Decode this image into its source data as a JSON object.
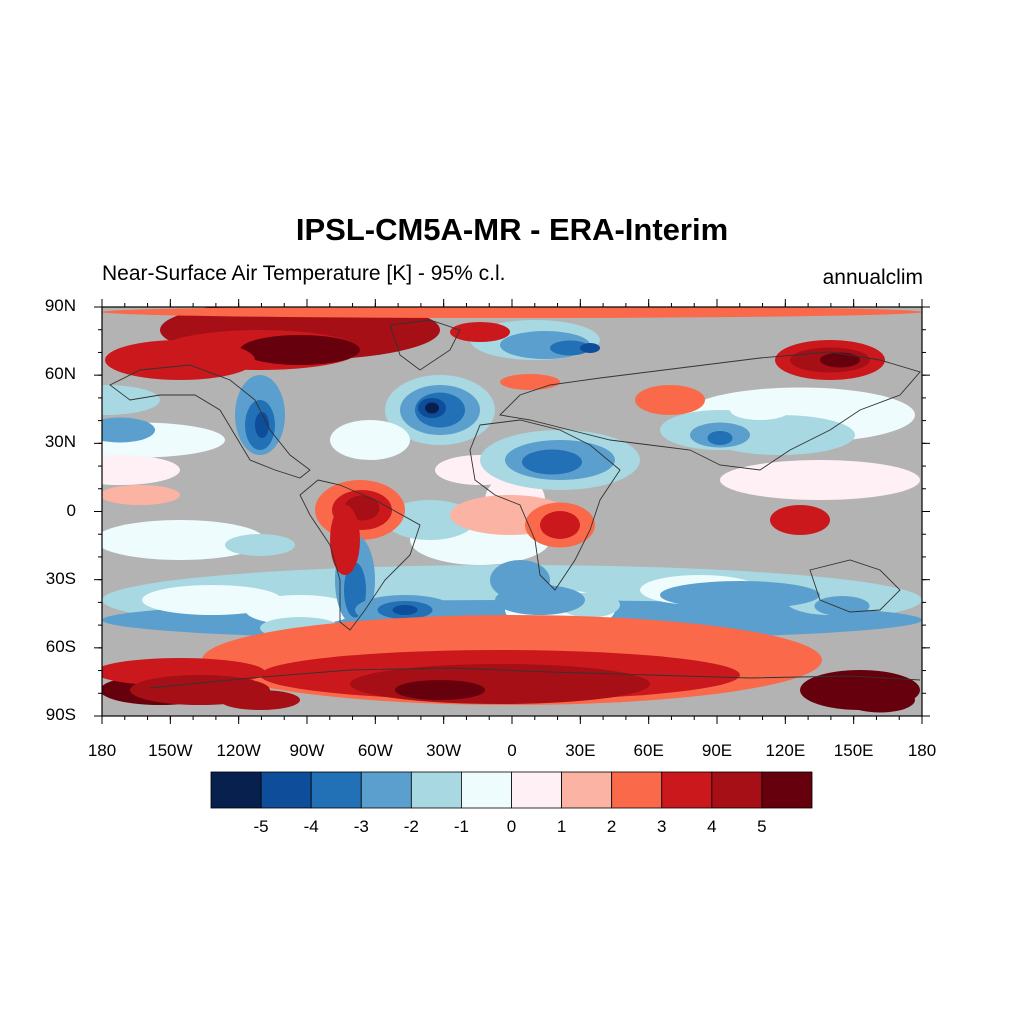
{
  "title": "IPSL-CM5A-MR - ERA-Interim",
  "subtitle_left": "Near-Surface Air Temperature [K] - 95% c.l.",
  "subtitle_right": "annualclim",
  "map": {
    "lat_labels": [
      "90N",
      "60N",
      "30N",
      "0",
      "30S",
      "60S",
      "90S"
    ],
    "lat_values": [
      90,
      60,
      30,
      0,
      -30,
      -60,
      -90
    ],
    "lon_labels": [
      "180",
      "150W",
      "120W",
      "90W",
      "60W",
      "30W",
      "0",
      "30E",
      "60E",
      "90E",
      "120E",
      "150E",
      "180"
    ],
    "lon_values": [
      -180,
      -150,
      -120,
      -90,
      -60,
      -30,
      0,
      30,
      60,
      90,
      120,
      150,
      180
    ],
    "insignificant_color": "#b3b3b3"
  },
  "colorbar": {
    "colors": [
      "#08204d",
      "#0d4d9a",
      "#2270b5",
      "#5a9fcd",
      "#a8d8e2",
      "#eefcfd",
      "#fff0f5",
      "#fbb3a3",
      "#fa6a4a",
      "#cb181d",
      "#a50f15",
      "#67000d"
    ],
    "labels": [
      "-5",
      "-4",
      "-3",
      "-2",
      "-1",
      "0",
      "1",
      "2",
      "3",
      "4",
      "5"
    ]
  }
}
